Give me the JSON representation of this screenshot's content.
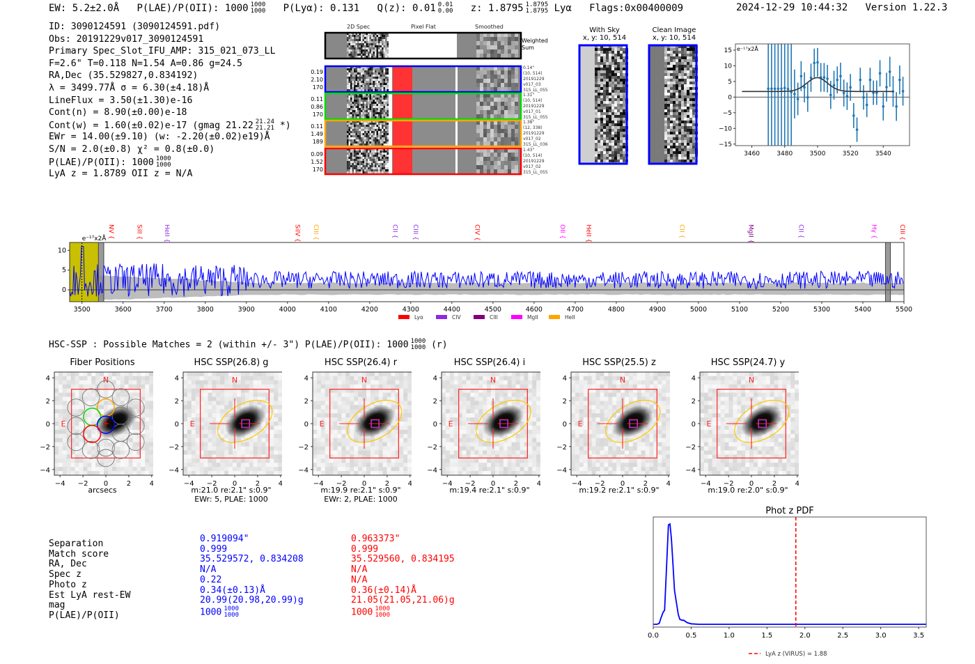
{
  "header": {
    "ew_label": "EW: 5.2±2.0Å",
    "plae_label": "P(LAE)/P(OII): 1000",
    "plae_hi": "1000",
    "plae_lo": "1000",
    "plya": "P(Lyα): 0.131",
    "qz_label": "Q(z): 0.01",
    "qz_hi": "0.01",
    "qz_lo": "0.00",
    "z_label": "z: 1.8795",
    "z_hi": "1.8795",
    "z_lo": "1.8795",
    "z_line": "Lyα",
    "flags": "Flags:0x00400009",
    "timestamp": "2024-12-29 10:44:32",
    "version": "Version 1.22.3"
  },
  "info": {
    "id": "ID: 3090124591 (3090124591.pdf)",
    "obs": "Obs: 20191229v017_3090124591",
    "primary": "Primary Spec_Slot_IFU_AMP: 315_021_073_LL",
    "params": "F=2.6\"  T=0.118  N=1.54  A=0.86  g=24.5",
    "radec": "RA,Dec (35.529827,0.834192)",
    "lambda": "λ = 3499.77Å   σ = 6.30(±4.18)Å",
    "lineflux": "LineFlux = 3.50(±1.30)e-16",
    "cont_n": "Cont(n) = 8.90(±0.00)e-18",
    "cont_w": "Cont(w) = 1.60(±0.02)e-17 (gmag 21.22",
    "cont_w_hi": "21.24",
    "cont_w_lo": "21.21",
    "cont_w_tail": "*)",
    "ewr": "EWr = 14.00(±9.10) (w: -2.20(±0.02)e19)Å",
    "sn": "S/N = 2.0(±0.8)  χ² = 0.8(±0.0)",
    "plae": "P(LAE)/P(OII): 1000",
    "plae_hi": "1000",
    "plae_lo": "1000",
    "lyaz": "LyA z = 1.8789  OII z = N/A"
  },
  "spec2d": {
    "columns": [
      "2D Spec",
      "Pixel Flat",
      "Smoothed"
    ],
    "weighted_label": "Weighted Sum",
    "fibers": [
      {
        "color": "#0000ff",
        "vals": [
          "0.19",
          "2.10",
          "170"
        ],
        "stamp": [
          "0.14\"",
          "(10, 514)",
          "20191229",
          "v017_03",
          "315_LL_055"
        ]
      },
      {
        "color": "#00dd00",
        "vals": [
          "0.11",
          "0.86",
          "170"
        ],
        "stamp": [
          "1.31\"",
          "(10, 514)",
          "20191229",
          "v017_01",
          "315_LL_055"
        ]
      },
      {
        "color": "#ffa500",
        "vals": [
          "0.11",
          "1.49",
          "189"
        ],
        "stamp": [
          "1.38\"",
          "(12, 338)",
          "20191229",
          "v017_02",
          "315_LL_036"
        ]
      },
      {
        "color": "#ff0000",
        "vals": [
          "0.09",
          "1.52",
          "170"
        ],
        "stamp": [
          "1.43\"",
          "(10, 514)",
          "20191229",
          "v017_02",
          "315_LL_055"
        ]
      }
    ]
  },
  "sky": {
    "with_sky_title": "With Sky",
    "with_sky_xy": "x, y: 10, 514",
    "clean_title": "Clean Image",
    "clean_xy": "x, y: 10, 514"
  },
  "hsc": {
    "summary": "HSC-SSP : Possible Matches = 2 (within +/- 3\")  P(LAE)/P(OII): 1000",
    "summary_hi": "1000",
    "summary_lo": "1000",
    "summary_tail": "(r)",
    "cutouts": [
      {
        "title": "Fiber Positions",
        "cap1": "arcsecs",
        "cap2": ""
      },
      {
        "title": "HSC SSP(26.8) g",
        "cap1": "m:21.0  re:2.1\"  s:0.9\"",
        "cap2": "EWr: 5, PLAE: 1000"
      },
      {
        "title": "HSC SSP(26.4) r",
        "cap1": "m:19.9  re:2.1\"  s:0.9\"",
        "cap2": "EWr: 2, PLAE: 1000"
      },
      {
        "title": "HSC SSP(26.4) i",
        "cap1": "m:19.4  re:2.1\"  s:0.9\"",
        "cap2": ""
      },
      {
        "title": "HSC SSP(25.5) z",
        "cap1": "m:19.2  re:2.1\"  s:0.9\"",
        "cap2": ""
      },
      {
        "title": "HSC SSP(24.7) y",
        "cap1": "m:19.0  re:2.0\"  s:0.9\"",
        "cap2": ""
      }
    ],
    "compass_n": "N",
    "compass_e": "E",
    "ticks": [
      "4",
      "2",
      "0",
      "−2",
      "−4"
    ],
    "xticks": [
      "−4",
      "−2",
      "0",
      "2",
      "4"
    ]
  },
  "matches": {
    "labels": [
      "Separation",
      "Match score",
      "RA, Dec",
      "Spec z",
      "Photo z",
      "Est LyA rest-EW",
      "mag",
      "P(LAE)/P(OII)"
    ],
    "match1": {
      "color": "#0000ff",
      "values": [
        "0.919094\"",
        "0.999",
        "35.529572, 0.834208",
        "N/A",
        "0.22",
        "0.34(±0.13)Å",
        "20.99(20.98,20.99)g",
        "1000"
      ],
      "plae_hi": "1000",
      "plae_lo": "1000"
    },
    "match2": {
      "color": "#ff0000",
      "values": [
        "0.963373\"",
        "0.999",
        "35.529560, 0.834195",
        "N/A",
        "N/A",
        "0.36(±0.14)Å",
        "21.05(21.05,21.06)g",
        "1000"
      ],
      "plae_hi": "1000",
      "plae_lo": "1000"
    }
  },
  "chart_data": [
    {
      "type": "scatter",
      "name": "line-fit-zoom",
      "ylabel": "e⁻¹⁷x2Å",
      "xlim": [
        3450,
        3556
      ],
      "ylim": [
        -15.5,
        17
      ],
      "xticks": [
        3460,
        3480,
        3500,
        3520,
        3540
      ],
      "yticks": [
        -15,
        -10,
        -5,
        0,
        5,
        10,
        15
      ],
      "points": [
        {
          "x": 3470,
          "y": 2.7,
          "err": 40
        },
        {
          "x": 3472,
          "y": 2.7,
          "err": 40
        },
        {
          "x": 3474,
          "y": 2.7,
          "err": 40
        },
        {
          "x": 3476,
          "y": 2.7,
          "err": 40
        },
        {
          "x": 3478,
          "y": 2.7,
          "err": 40
        },
        {
          "x": 3480,
          "y": 2.9,
          "err": 40
        },
        {
          "x": 3482,
          "y": 2.6,
          "err": 40
        },
        {
          "x": 3484,
          "y": 1.6,
          "err": 40
        },
        {
          "x": 3486,
          "y": 1.0,
          "err": 7.8
        },
        {
          "x": 3488,
          "y": -0.6,
          "err": 5.2
        },
        {
          "x": 3490,
          "y": 6.7,
          "err": 4.8
        },
        {
          "x": 3492,
          "y": 3.1,
          "err": 4.8
        },
        {
          "x": 3494,
          "y": -0.1,
          "err": 4.6
        },
        {
          "x": 3496,
          "y": 6.2,
          "err": 4.5
        },
        {
          "x": 3498,
          "y": 10.9,
          "err": 4.6
        },
        {
          "x": 3500,
          "y": 11.1,
          "err": 4.6
        },
        {
          "x": 3502,
          "y": 6.3,
          "err": 4.6
        },
        {
          "x": 3504,
          "y": 6.3,
          "err": 4.6
        },
        {
          "x": 3506,
          "y": 5.9,
          "err": 4.4
        },
        {
          "x": 3508,
          "y": 0.7,
          "err": 4.5
        },
        {
          "x": 3510,
          "y": 3.8,
          "err": 4.6
        },
        {
          "x": 3512,
          "y": 5.5,
          "err": 4.3
        },
        {
          "x": 3514,
          "y": 6.7,
          "err": 4.3
        },
        {
          "x": 3516,
          "y": 1.3,
          "err": 4.3
        },
        {
          "x": 3518,
          "y": 0.3,
          "err": 4.4
        },
        {
          "x": 3520,
          "y": 3.1,
          "err": 4.3
        },
        {
          "x": 3522,
          "y": -5.9,
          "err": 4.0
        },
        {
          "x": 3524,
          "y": -10.4,
          "err": 3.9
        },
        {
          "x": 3526,
          "y": 5.5,
          "err": 3.9
        },
        {
          "x": 3528,
          "y": -0.1,
          "err": 3.9
        },
        {
          "x": 3530,
          "y": -2.5,
          "err": 3.9
        },
        {
          "x": 3532,
          "y": 5.5,
          "err": 3.9
        },
        {
          "x": 3534,
          "y": 1.4,
          "err": 3.9
        },
        {
          "x": 3536,
          "y": 1.4,
          "err": 3.9
        },
        {
          "x": 3538,
          "y": 7.6,
          "err": 4.2
        },
        {
          "x": 3540,
          "y": -3.0,
          "err": 4.5
        },
        {
          "x": 3542,
          "y": 3.2,
          "err": 4.6
        },
        {
          "x": 3544,
          "y": 8.1,
          "err": 4.8
        },
        {
          "x": 3546,
          "y": 1.8,
          "err": 4.9
        },
        {
          "x": 3548,
          "y": -3.0,
          "err": 4.6
        },
        {
          "x": 3550,
          "y": 5.5,
          "err": 4.6
        },
        {
          "x": 3552,
          "y": 1.9,
          "err": 4.6
        }
      ],
      "fit": {
        "center": 3499.77,
        "sigma": 6.3,
        "continuum": 1.8,
        "amplitude": 4.4,
        "xrange": [
          3454,
          3546
        ]
      },
      "colors": {
        "points": "#1f77b4",
        "fit": "#333333"
      }
    },
    {
      "type": "line",
      "name": "full-spectrum",
      "ylabel": "e⁻¹⁷x2Å",
      "xlim": [
        3470,
        5500
      ],
      "ylim": [
        -3,
        12
      ],
      "xticks": [
        3500,
        3600,
        3700,
        3800,
        3900,
        4000,
        4100,
        4200,
        4300,
        4400,
        4500,
        4600,
        4700,
        4800,
        4900,
        5000,
        5100,
        5200,
        5300,
        5400,
        5500
      ],
      "yticks": [
        0,
        5,
        10
      ],
      "series_color": "#0000ff",
      "mean_level": 2.5,
      "noise_amplitude": 2.2,
      "highlight_region": {
        "x": [
          3470,
          3540
        ],
        "color": "#c8c000"
      },
      "hatched_regions": [
        {
          "x": [
            3540,
            3553
          ]
        },
        {
          "x": [
            5455,
            5467
          ]
        }
      ],
      "emission_line_marker": 3499.77,
      "lines": [
        {
          "label": "NV",
          "x": 3572,
          "color": "#ff0000"
        },
        {
          "label": "SiII",
          "x": 3640,
          "color": "#ff0000"
        },
        {
          "label": "HeII",
          "x": 3707,
          "color": "#8a2be2"
        },
        {
          "label": "SiIV",
          "x": 4025,
          "color": "#ff0000"
        },
        {
          "label": "CIII",
          "x": 4070,
          "color": "#ffa500"
        },
        {
          "label": "CII",
          "x": 4262,
          "color": "#8a2be2"
        },
        {
          "label": "CIII",
          "x": 4312,
          "color": "#8a2be2"
        },
        {
          "label": "CIV",
          "x": 4462,
          "color": "#ff0000"
        },
        {
          "label": "OII",
          "x": 4670,
          "color": "#ff00ff"
        },
        {
          "label": "HeII",
          "x": 4733,
          "color": "#ff0000"
        },
        {
          "label": "CII",
          "x": 4960,
          "color": "#ffa500"
        },
        {
          "label": "MgII",
          "x": 5128,
          "color": "#800080"
        },
        {
          "label": "CII",
          "x": 5250,
          "color": "#8a2be2"
        },
        {
          "label": "Hγ",
          "x": 5428,
          "color": "#ff00ff"
        },
        {
          "label": "CIII",
          "x": 5497,
          "color": "#ff0000"
        }
      ],
      "legend": [
        {
          "label": "Lyα",
          "color": "#ff0000"
        },
        {
          "label": "CIV",
          "color": "#8a2be2"
        },
        {
          "label": "CIII",
          "color": "#800080"
        },
        {
          "label": "MgII",
          "color": "#ff00ff"
        },
        {
          "label": "HeII",
          "color": "#ffa500"
        }
      ],
      "legend_placement": "bottom-center"
    },
    {
      "type": "line",
      "name": "phot-z-pdf",
      "title": "Phot z PDF",
      "xlim": [
        0,
        3.6
      ],
      "xticks": [
        0.0,
        0.5,
        1.0,
        1.5,
        2.0,
        2.5,
        3.0,
        3.5
      ],
      "x": [
        0.0,
        0.05,
        0.08,
        0.1,
        0.13,
        0.15,
        0.18,
        0.2,
        0.22,
        0.24,
        0.26,
        0.28,
        0.3,
        0.33,
        0.35,
        0.38,
        0.4,
        0.45,
        0.5,
        0.6,
        1.0,
        2.0,
        3.0,
        3.6
      ],
      "y": [
        0.0,
        0.0,
        0.01,
        0.06,
        0.12,
        0.14,
        0.65,
        0.99,
        1.0,
        0.85,
        0.6,
        0.34,
        0.24,
        0.1,
        0.05,
        0.04,
        0.04,
        0.015,
        0.005,
        0.0,
        0.0,
        0.0,
        0.0,
        0.0
      ],
      "series_color": "#0000ff",
      "vline": {
        "x": 1.88,
        "color": "#ff0000",
        "style": "dashed"
      },
      "legend": [
        {
          "label": "LyA z (VIRUS) = 1.88",
          "color": "#ff0000"
        }
      ],
      "legend_placement": "bottom-center"
    }
  ]
}
